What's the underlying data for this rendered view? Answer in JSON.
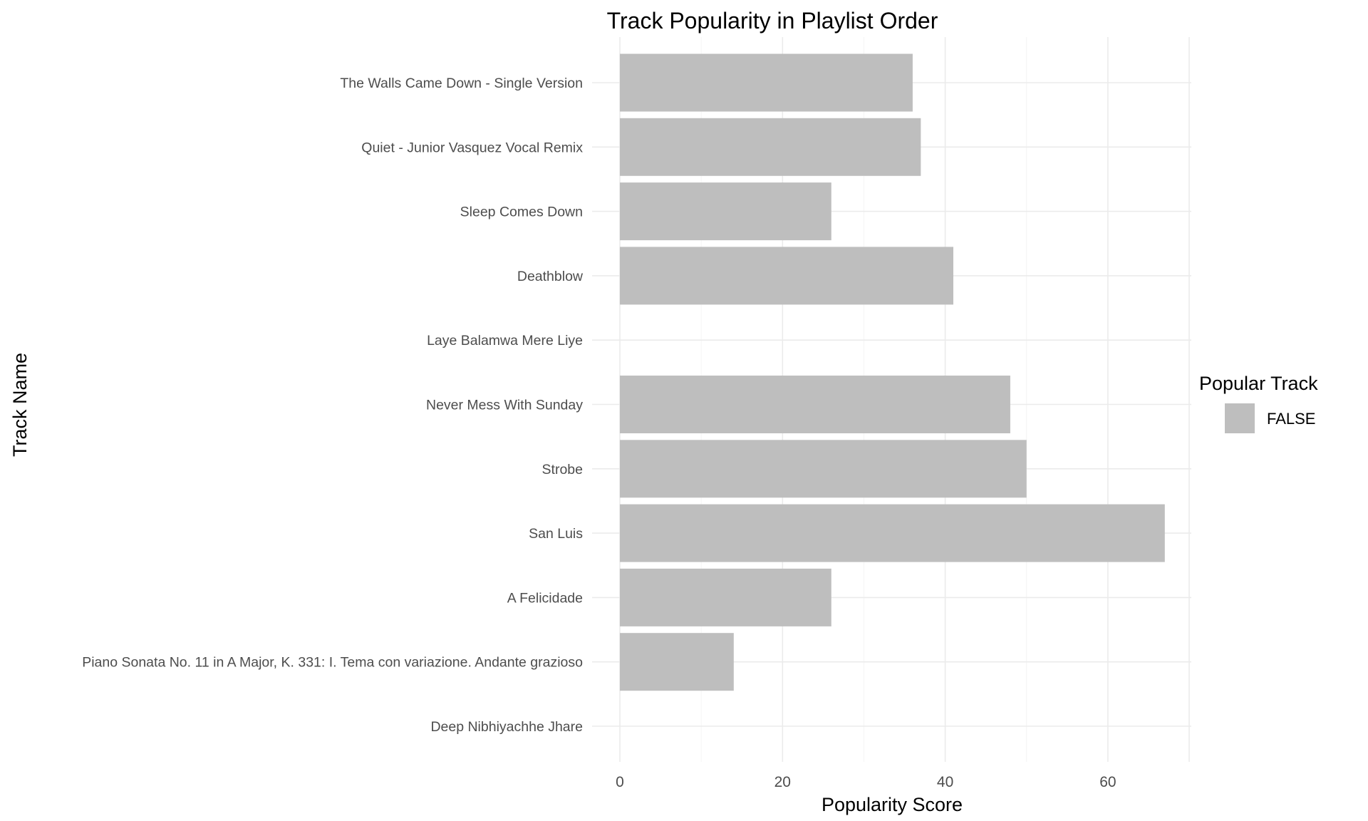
{
  "chart_data": {
    "type": "bar",
    "orientation": "horizontal",
    "title": "Track Popularity in Playlist Order",
    "xlabel": "Popularity Score",
    "ylabel": "Track Name",
    "xlim": [
      0,
      70
    ],
    "xticks": [
      0,
      20,
      40,
      60
    ],
    "grid": true,
    "categories": [
      "The Walls Came Down - Single Version",
      "Quiet - Junior Vasquez Vocal Remix",
      "Sleep Comes Down",
      "Deathblow",
      "Laye Balamwa Mere Liye",
      "Never Mess With Sunday",
      "Strobe",
      "San Luis",
      "A Felicidade",
      "Piano Sonata No. 11 in A Major, K. 331: I. Tema con variazione. Andante grazioso",
      "Deep Nibhiyachhe Jhare"
    ],
    "values": [
      36,
      37,
      26,
      41,
      0,
      48,
      50,
      67,
      26,
      14,
      0
    ],
    "bar_color": "#bebebe",
    "legend": {
      "title": "Popular Track",
      "placement": "right",
      "entries": [
        {
          "label": "FALSE",
          "color": "#bebebe"
        }
      ]
    }
  }
}
